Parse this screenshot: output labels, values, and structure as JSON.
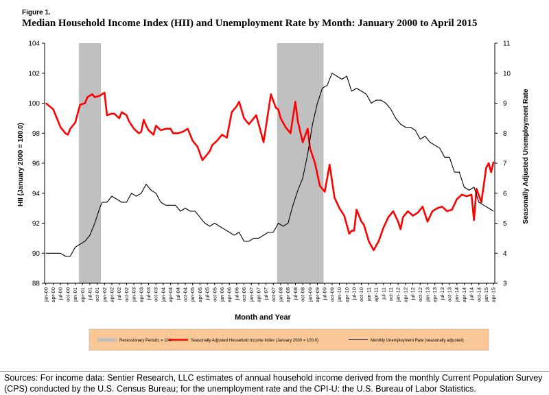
{
  "figure_label": "Figure 1.",
  "title": "Median Household Income Index (HII) and Unemployment Rate by Month: January 2000 to April 2015",
  "sources": "Sources: For income data: Sentier Research, LLC estimates of annual household income derived from the monthly Current Population Survey (CPS) conducted by the U.S. Census Bureau; for the unemployment rate and the CPI-U: the U.S. Bureau of Labor Statistics.",
  "colors": {
    "recession": "#c0c0c0",
    "income": "#ff0000",
    "unemployment": "#000000",
    "legend_bg": "#f9c896"
  },
  "chart_data": {
    "type": "line",
    "xlabel": "Month and Year",
    "ylabel_left": "HII (January 2000 = 100.0)",
    "ylabel_right": "Seasonally Adjusted Unemployment Rate",
    "ylim_left": [
      88,
      104
    ],
    "ylim_right": [
      3,
      11
    ],
    "yticks_left": [
      "88",
      "90",
      "92",
      "94",
      "96",
      "98",
      "100",
      "102",
      "104"
    ],
    "yticks_right": [
      "3",
      "4",
      "5",
      "6",
      "7",
      "8",
      "9",
      "10",
      "11"
    ],
    "x_tick_labels": [
      "jan-00",
      "apr-00",
      "jul-00",
      "oct-00",
      "jan-01",
      "apr-01",
      "jul-01",
      "oct-01",
      "jan-02",
      "apr-02",
      "jul-02",
      "oct-02",
      "jan-03",
      "apr-03",
      "jul-03",
      "oct-03",
      "jan-04",
      "apr-04",
      "jul-04",
      "oct-04",
      "jan-05",
      "apr-05",
      "jul-05",
      "oct-05",
      "jan-06",
      "apr-06",
      "jul-06",
      "oct-06",
      "jan-07",
      "apr-07",
      "jul-07",
      "oct-07",
      "jan-08",
      "apr-08",
      "jul-08",
      "oct-08",
      "jan-09",
      "apr-09",
      "jul-09",
      "oct-09",
      "jan-10",
      "apr-10",
      "jul-10",
      "oct-10",
      "jan-11",
      "apr-11",
      "jul-11",
      "oct-11",
      "jan-12",
      "apr-12",
      "jul-12",
      "oct-12",
      "jan-13",
      "apr-13",
      "jul-13",
      "oct-13",
      "jan-14",
      "apr-14",
      "jul-14",
      "oct-14",
      "jan-15",
      "apr-15"
    ],
    "recessions": [
      {
        "start": "2001-03",
        "end": "2001-11"
      },
      {
        "start": "2007-12",
        "end": "2009-06"
      }
    ],
    "legend": [
      {
        "label": "Recessionary Periods = 104*",
        "style": "band"
      },
      {
        "label": "Seasonally Adjusted Household Income Index (January 2000 = 100.0)",
        "style": "income"
      },
      {
        "label": "Monthly Unemployment Rate (seasonally adjusted)",
        "style": "unemployment"
      }
    ],
    "legend_position": "bottom",
    "series": [
      {
        "name": "Seasonally Adjusted Household Income Index (January 2000 = 100.0)",
        "axis": "left",
        "x": [
          "2000-01",
          "2000-04",
          "2000-07",
          "2000-09",
          "2000-10",
          "2000-11",
          "2001-01",
          "2001-03",
          "2001-05",
          "2001-06",
          "2001-08",
          "2001-09",
          "2001-11",
          "2002-01",
          "2002-02",
          "2002-04",
          "2002-05",
          "2002-07",
          "2002-08",
          "2002-10",
          "2002-11",
          "2003-01",
          "2003-03",
          "2003-04",
          "2003-05",
          "2003-06",
          "2003-07",
          "2003-09",
          "2003-10",
          "2003-12",
          "2004-02",
          "2004-04",
          "2004-05",
          "2004-07",
          "2004-09",
          "2004-11",
          "2004-12",
          "2005-01",
          "2005-03",
          "2005-05",
          "2005-07",
          "2005-08",
          "2005-09",
          "2005-11",
          "2006-01",
          "2006-03",
          "2006-05",
          "2006-07",
          "2006-08",
          "2006-10",
          "2006-12",
          "2007-03",
          "2007-06",
          "2007-09",
          "2007-11",
          "2007-12",
          "2008-01",
          "2008-03",
          "2008-05",
          "2008-07",
          "2008-08",
          "2008-10",
          "2008-12",
          "2009-01",
          "2009-03",
          "2009-05",
          "2009-07",
          "2009-09",
          "2009-11",
          "2010-01",
          "2010-03",
          "2010-05",
          "2010-06",
          "2010-07",
          "2010-08",
          "2010-10",
          "2010-11",
          "2011-01",
          "2011-03",
          "2011-05",
          "2011-07",
          "2011-09",
          "2011-11",
          "2012-01",
          "2012-02",
          "2012-03",
          "2012-05",
          "2012-07",
          "2012-09",
          "2012-11",
          "2013-01",
          "2013-03",
          "2013-05",
          "2013-07",
          "2013-09",
          "2013-11",
          "2014-01",
          "2014-03",
          "2014-05",
          "2014-07",
          "2014-08",
          "2014-09",
          "2014-11",
          "2015-01",
          "2015-02",
          "2015-03",
          "2015-04"
        ],
        "values": [
          100.0,
          99.6,
          98.4,
          98.0,
          97.9,
          98.3,
          98.7,
          99.9,
          100.0,
          100.4,
          100.6,
          100.4,
          100.5,
          100.7,
          99.2,
          99.3,
          99.3,
          99.0,
          99.4,
          99.2,
          98.8,
          98.3,
          98.0,
          98.1,
          98.9,
          98.5,
          98.2,
          97.9,
          98.5,
          98.2,
          98.3,
          98.3,
          98.0,
          98.0,
          98.1,
          98.3,
          97.9,
          97.5,
          97.1,
          96.2,
          96.6,
          96.8,
          97.2,
          97.5,
          97.9,
          97.7,
          99.4,
          99.8,
          100.1,
          99.0,
          98.6,
          99.2,
          97.4,
          100.6,
          99.7,
          99.6,
          99.0,
          98.4,
          98.0,
          100.1,
          98.8,
          97.4,
          98.3,
          97.0,
          96.0,
          94.5,
          94.1,
          95.9,
          93.7,
          93.0,
          92.5,
          91.3,
          91.5,
          91.5,
          92.9,
          92.1,
          91.9,
          90.8,
          90.2,
          90.8,
          91.7,
          92.4,
          92.8,
          92.1,
          91.6,
          92.4,
          92.8,
          92.5,
          92.7,
          93.1,
          92.1,
          92.8,
          93.0,
          93.1,
          92.8,
          92.9,
          93.6,
          93.9,
          93.8,
          93.9,
          92.2,
          94.3,
          93.4,
          95.7,
          96.0,
          95.4,
          96.1
        ]
      },
      {
        "name": "Monthly Unemployment Rate (seasonally adjusted)",
        "axis": "right",
        "x": [
          "2000-01",
          "2000-03",
          "2000-05",
          "2000-07",
          "2000-09",
          "2000-11",
          "2001-01",
          "2001-03",
          "2001-05",
          "2001-07",
          "2001-09",
          "2001-11",
          "2001-12",
          "2002-02",
          "2002-04",
          "2002-06",
          "2002-08",
          "2002-10",
          "2002-12",
          "2003-02",
          "2003-04",
          "2003-06",
          "2003-08",
          "2003-10",
          "2003-12",
          "2004-02",
          "2004-04",
          "2004-06",
          "2004-08",
          "2004-10",
          "2004-12",
          "2005-02",
          "2005-04",
          "2005-06",
          "2005-08",
          "2005-10",
          "2005-12",
          "2006-02",
          "2006-04",
          "2006-06",
          "2006-08",
          "2006-10",
          "2006-12",
          "2007-02",
          "2007-04",
          "2007-06",
          "2007-08",
          "2007-10",
          "2007-12",
          "2008-02",
          "2008-04",
          "2008-06",
          "2008-08",
          "2008-10",
          "2008-12",
          "2009-02",
          "2009-04",
          "2009-06",
          "2009-08",
          "2009-10",
          "2009-12",
          "2010-02",
          "2010-04",
          "2010-06",
          "2010-08",
          "2010-10",
          "2010-12",
          "2011-02",
          "2011-04",
          "2011-06",
          "2011-08",
          "2011-10",
          "2011-12",
          "2012-02",
          "2012-04",
          "2012-06",
          "2012-08",
          "2012-10",
          "2012-12",
          "2013-02",
          "2013-04",
          "2013-06",
          "2013-08",
          "2013-10",
          "2013-12",
          "2014-02",
          "2014-04",
          "2014-06",
          "2014-08",
          "2014-10",
          "2014-12",
          "2015-02",
          "2015-04"
        ],
        "values": [
          4.0,
          4.0,
          4.0,
          4.0,
          3.9,
          3.9,
          4.2,
          4.3,
          4.4,
          4.6,
          5.0,
          5.5,
          5.7,
          5.7,
          5.9,
          5.8,
          5.7,
          5.7,
          6.0,
          5.9,
          6.0,
          6.3,
          6.1,
          6.0,
          5.7,
          5.6,
          5.6,
          5.6,
          5.4,
          5.5,
          5.4,
          5.4,
          5.2,
          5.0,
          4.9,
          5.0,
          4.9,
          4.8,
          4.7,
          4.6,
          4.7,
          4.4,
          4.4,
          4.5,
          4.5,
          4.6,
          4.7,
          4.7,
          5.0,
          4.9,
          5.0,
          5.6,
          6.1,
          6.5,
          7.3,
          8.3,
          9.0,
          9.5,
          9.6,
          10.0,
          9.9,
          9.8,
          9.9,
          9.4,
          9.5,
          9.4,
          9.3,
          9.0,
          9.1,
          9.1,
          9.0,
          8.8,
          8.5,
          8.3,
          8.2,
          8.2,
          8.1,
          7.8,
          7.9,
          7.7,
          7.6,
          7.5,
          7.2,
          7.2,
          6.7,
          6.7,
          6.2,
          6.1,
          6.2,
          5.7,
          5.6,
          5.5,
          5.4
        ]
      }
    ]
  }
}
